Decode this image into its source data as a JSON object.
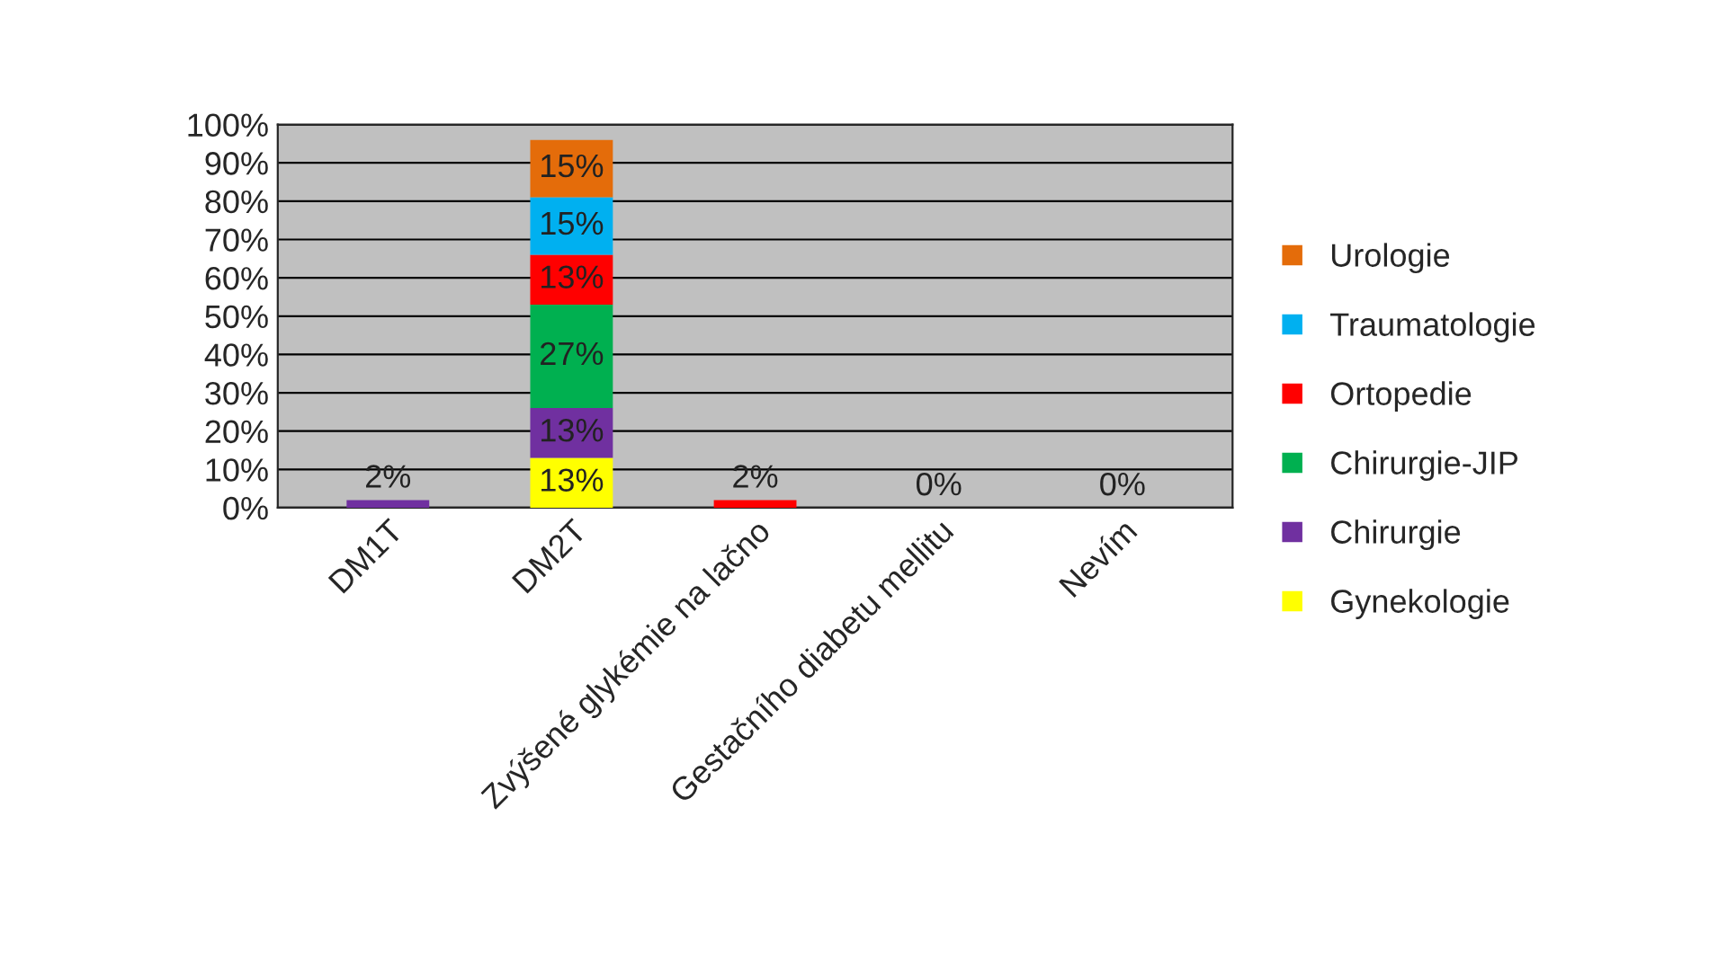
{
  "chart_data": {
    "type": "bar",
    "stacked": true,
    "categories": [
      "DM1T",
      "DM2T",
      "Zvýšené glykémie na lačno",
      "Gestačního diabetu mellitu",
      "Nevím"
    ],
    "series": [
      {
        "name": "Gynekologie",
        "color": "#ffff00",
        "values": [
          0,
          13,
          0,
          0,
          0
        ],
        "value_labels": [
          null,
          "13%",
          null,
          null,
          null
        ]
      },
      {
        "name": "Chirurgie",
        "color": "#7030a0",
        "values": [
          2,
          13,
          0,
          0,
          0
        ],
        "value_labels": [
          "2%",
          "13%",
          null,
          null,
          null
        ]
      },
      {
        "name": "Chirurgie-JIP",
        "color": "#00b050",
        "values": [
          0,
          27,
          0,
          0,
          0
        ],
        "value_labels": [
          null,
          "27%",
          null,
          null,
          null
        ]
      },
      {
        "name": "Ortopedie",
        "color": "#ff0000",
        "values": [
          0,
          13,
          2,
          0,
          0
        ],
        "value_labels": [
          null,
          "13%",
          "2%",
          null,
          null
        ]
      },
      {
        "name": "Traumatologie",
        "color": "#00b0f0",
        "values": [
          0,
          15,
          0,
          0,
          0
        ],
        "value_labels": [
          null,
          "15%",
          null,
          null,
          null
        ]
      },
      {
        "name": "Urologie",
        "color": "#e46c0a",
        "values": [
          0,
          15,
          0,
          0,
          0
        ],
        "value_labels": [
          null,
          "15%",
          null,
          "0%",
          "0%"
        ]
      }
    ],
    "ylim": [
      0,
      100
    ],
    "yticks": [
      {
        "value": 0,
        "label": "0%"
      },
      {
        "value": 10,
        "label": "10%"
      },
      {
        "value": 20,
        "label": "20%"
      },
      {
        "value": 30,
        "label": "30%"
      },
      {
        "value": 40,
        "label": "40%"
      },
      {
        "value": 50,
        "label": "50%"
      },
      {
        "value": 60,
        "label": "60%"
      },
      {
        "value": 70,
        "label": "70%"
      },
      {
        "value": 80,
        "label": "80%"
      },
      {
        "value": 90,
        "label": "90%"
      },
      {
        "value": 100,
        "label": "100%"
      }
    ],
    "grid": "y",
    "legend": "right"
  }
}
